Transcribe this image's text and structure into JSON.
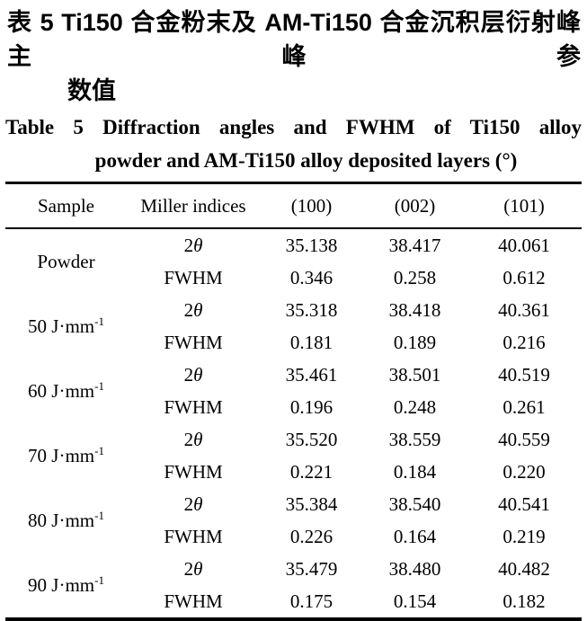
{
  "caption_cn": {
    "label": "表 5",
    "line1_rest": "Ti150 合金粉末及 AM-Ti150 合金沉积层衍射峰主峰参",
    "line2": "数值"
  },
  "caption_en": {
    "label": "Table 5",
    "line1_rest": "Diffraction angles and FWHM of Ti150 alloy",
    "line2": "powder and AM-Ti150 alloy deposited layers (°)"
  },
  "table": {
    "headers": [
      "Sample",
      "Miller indices",
      "(100)",
      "(002)",
      "(101)"
    ],
    "groups": [
      {
        "sample_base": "Powder",
        "sample_sup": "",
        "rows": [
          {
            "label_roman": "2",
            "label_italic": "θ",
            "values": [
              "35.138",
              "38.417",
              "40.061"
            ]
          },
          {
            "label_roman": "FWHM",
            "label_italic": "",
            "values": [
              "0.346",
              "0.258",
              "0.612"
            ]
          }
        ]
      },
      {
        "sample_base": "50 J·mm",
        "sample_sup": "-1",
        "rows": [
          {
            "label_roman": "2",
            "label_italic": "θ",
            "values": [
              "35.318",
              "38.418",
              "40.361"
            ]
          },
          {
            "label_roman": "FWHM",
            "label_italic": "",
            "values": [
              "0.181",
              "0.189",
              "0.216"
            ]
          }
        ]
      },
      {
        "sample_base": "60 J·mm",
        "sample_sup": "-1",
        "rows": [
          {
            "label_roman": "2",
            "label_italic": "θ",
            "values": [
              "35.461",
              "38.501",
              "40.519"
            ]
          },
          {
            "label_roman": "FWHM",
            "label_italic": "",
            "values": [
              "0.196",
              "0.248",
              "0.261"
            ]
          }
        ]
      },
      {
        "sample_base": "70 J·mm",
        "sample_sup": "-1",
        "rows": [
          {
            "label_roman": "2",
            "label_italic": "θ",
            "values": [
              "35.520",
              "38.559",
              "40.559"
            ]
          },
          {
            "label_roman": "FWHM",
            "label_italic": "",
            "values": [
              "0.221",
              "0.184",
              "0.220"
            ]
          }
        ]
      },
      {
        "sample_base": "80 J·mm",
        "sample_sup": "-1",
        "rows": [
          {
            "label_roman": "2",
            "label_italic": "θ",
            "values": [
              "35.384",
              "38.540",
              "40.541"
            ]
          },
          {
            "label_roman": "FWHM",
            "label_italic": "",
            "values": [
              "0.226",
              "0.164",
              "0.219"
            ]
          }
        ]
      },
      {
        "sample_base": "90 J·mm",
        "sample_sup": "-1",
        "rows": [
          {
            "label_roman": "2",
            "label_italic": "θ",
            "values": [
              "35.479",
              "38.480",
              "40.482"
            ]
          },
          {
            "label_roman": "FWHM",
            "label_italic": "",
            "values": [
              "0.175",
              "0.154",
              "0.182"
            ]
          }
        ]
      }
    ]
  }
}
